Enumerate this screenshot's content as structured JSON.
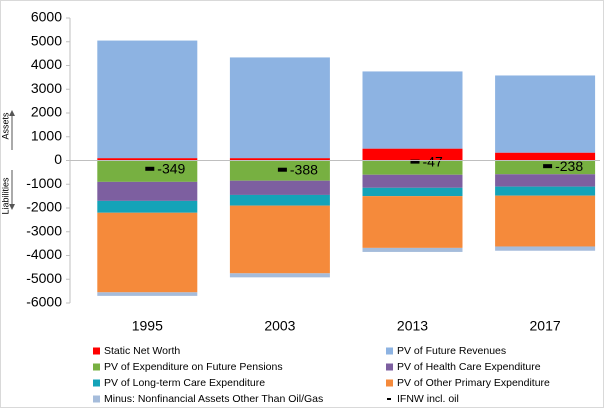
{
  "chart_data": {
    "type": "stacked_bar",
    "categories": [
      "1995",
      "2003",
      "2013",
      "2017"
    ],
    "ylim": [
      -6000,
      6000
    ],
    "yticks": [
      -6000,
      -5000,
      -4000,
      -3000,
      -2000,
      -1000,
      0,
      1000,
      2000,
      3000,
      4000,
      5000,
      6000
    ],
    "annotations": [
      "Assets",
      "Liabilities"
    ],
    "series": [
      {
        "name": "Static Net Worth",
        "color": "#ff0000",
        "values": [
          100,
          100,
          500,
          330
        ]
      },
      {
        "name": "PV of Future Revenues",
        "color": "#8db3e2",
        "values": [
          4950,
          4240,
          3250,
          3250
        ]
      },
      {
        "name": "PV of Expenditure on Future Pensions",
        "color": "#77b041",
        "values": [
          -900,
          -850,
          -600,
          -580
        ]
      },
      {
        "name": "PV of Health Care Expenditure",
        "color": "#7d5fa0",
        "values": [
          -800,
          -600,
          -550,
          -520
        ]
      },
      {
        "name": "PV of Long-term Care Expenditure",
        "color": "#14a3b8",
        "values": [
          -500,
          -450,
          -350,
          -380
        ]
      },
      {
        "name": "PV of Other Primary Expenditure",
        "color": "#f58a3b",
        "values": [
          -3350,
          -2850,
          -2180,
          -2140
        ]
      },
      {
        "name": "Minus: Nonfinancial Assets Other Than Oil/Gas",
        "color": "#a5bcdb",
        "values": [
          -150,
          -170,
          -170,
          -180
        ]
      },
      {
        "name": "IFNW incl. oil",
        "color": "#000000",
        "marker": true,
        "values": [
          -349,
          -388,
          -47,
          -238
        ]
      }
    ]
  }
}
